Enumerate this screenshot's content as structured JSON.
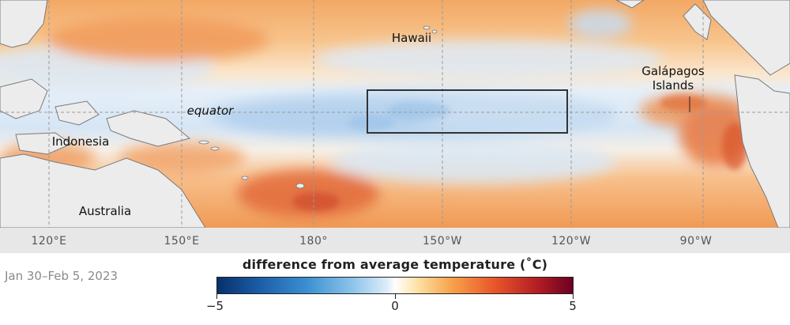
{
  "map": {
    "place_labels": {
      "hawaii": "Hawaii",
      "galapagos_line1": "Galápagos",
      "galapagos_line2": "Islands",
      "equator": "equator",
      "indonesia": "Indonesia",
      "australia": "Australia"
    },
    "longitude_labels": [
      "120°E",
      "150°E",
      "180°",
      "150°W",
      "120°W",
      "90°W"
    ],
    "highlight_box": "Niño 3.4 region outline"
  },
  "date": "Jan 30–Feb 5, 2023",
  "legend": {
    "title": "difference from average temperature (˚C)",
    "min_label": "−5",
    "mid_label": "0",
    "max_label": "5",
    "colors": {
      "cold": "#08306b",
      "neutral": "#ffffff",
      "warm": "#6b0022"
    }
  }
}
